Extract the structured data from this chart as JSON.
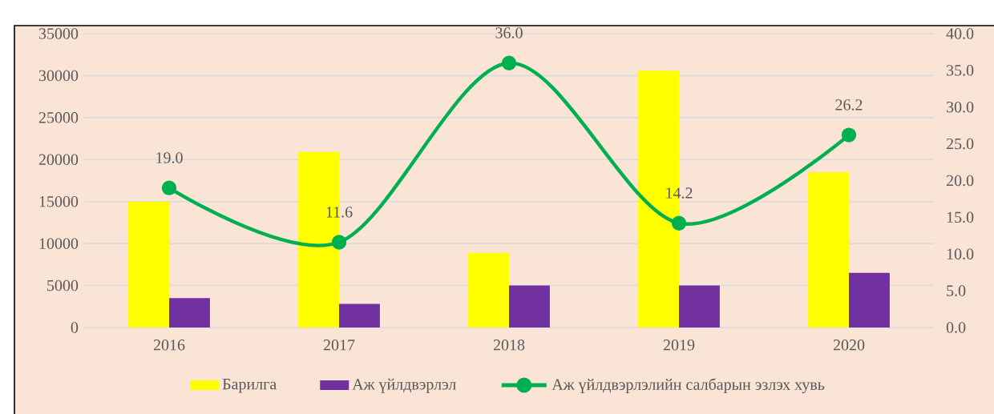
{
  "chart_data": {
    "type": "bar",
    "categories": [
      "2016",
      "2017",
      "2018",
      "2019",
      "2020"
    ],
    "series": [
      {
        "name": "Барилга",
        "color": "#ffff00",
        "values": [
          15000,
          20900,
          8900,
          30600,
          18500
        ]
      },
      {
        "name": "Аж үйлдвэрлэл",
        "color": "#7030a0",
        "values": [
          3500,
          2800,
          5000,
          5000,
          6500
        ]
      },
      {
        "name": "Аж үйлдвэрлэлийн салбарын эзлэх хувь",
        "type": "line",
        "axis": "y2",
        "color": "#00b050",
        "marker": "circle",
        "values": [
          19.0,
          11.6,
          36.0,
          14.2,
          26.2
        ],
        "value_labels": [
          "19.0",
          "11.6",
          "36.0",
          "14.2",
          "26.2"
        ]
      }
    ],
    "ylim": [
      0,
      35000
    ],
    "yticks": [
      0,
      5000,
      10000,
      15000,
      20000,
      25000,
      30000,
      35000
    ],
    "y2lim": [
      0,
      40
    ],
    "y2ticks": [
      {
        "value": 0,
        "label": "0.0"
      },
      {
        "value": 5,
        "label": "5.0"
      },
      {
        "value": 10,
        "label": "10.0"
      },
      {
        "value": 15,
        "label": "15.0"
      },
      {
        "value": 20,
        "label": "20.0"
      },
      {
        "value": 25,
        "label": "25.0"
      },
      {
        "value": 30,
        "label": "30.0"
      },
      {
        "value": 35,
        "label": "35.0"
      },
      {
        "value": 40,
        "label": "40.0"
      }
    ],
    "grid": "y",
    "legend": "bottom"
  }
}
